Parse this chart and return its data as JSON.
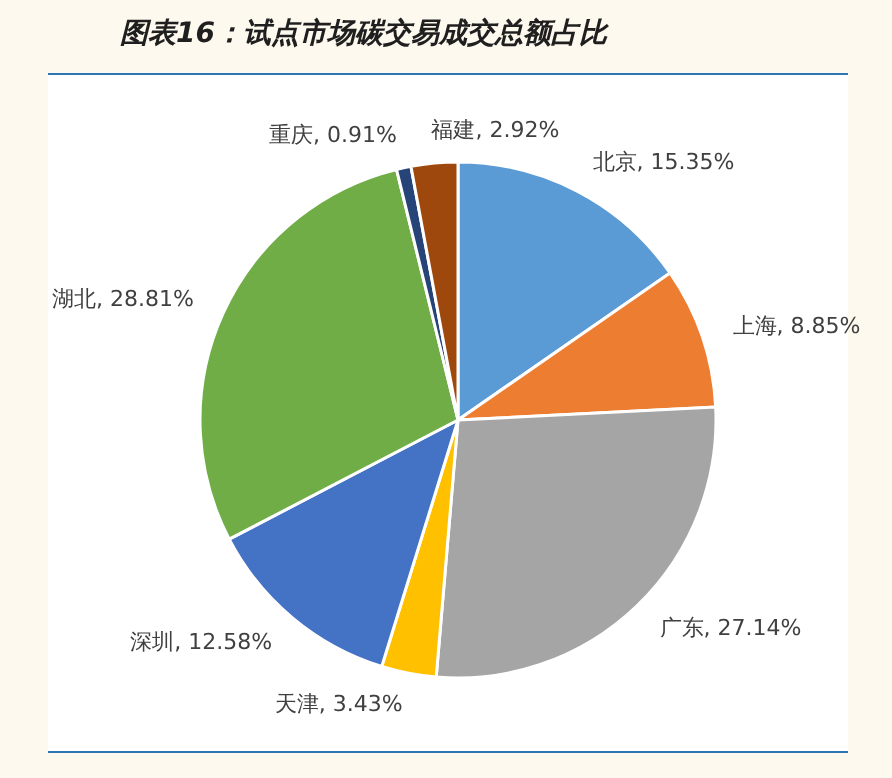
{
  "chart_data": {
    "type": "pie",
    "title": "图表16：试点市场碳交易成交总额占比",
    "categories": [
      "北京",
      "上海",
      "广东",
      "天津",
      "深圳",
      "湖北",
      "重庆",
      "福建"
    ],
    "values": [
      15.35,
      8.85,
      27.14,
      3.43,
      12.58,
      28.81,
      0.91,
      2.92
    ],
    "value_labels": [
      "15.35%",
      "8.85%",
      "27.14%",
      "3.43%",
      "12.58%",
      "28.81%",
      "0.91%",
      "2.92%"
    ],
    "colors": [
      "#5b9bd5",
      "#ed7d31",
      "#a5a5a5",
      "#ffc000",
      "#4472c4",
      "#70ad47",
      "#264478",
      "#9e480e"
    ]
  }
}
